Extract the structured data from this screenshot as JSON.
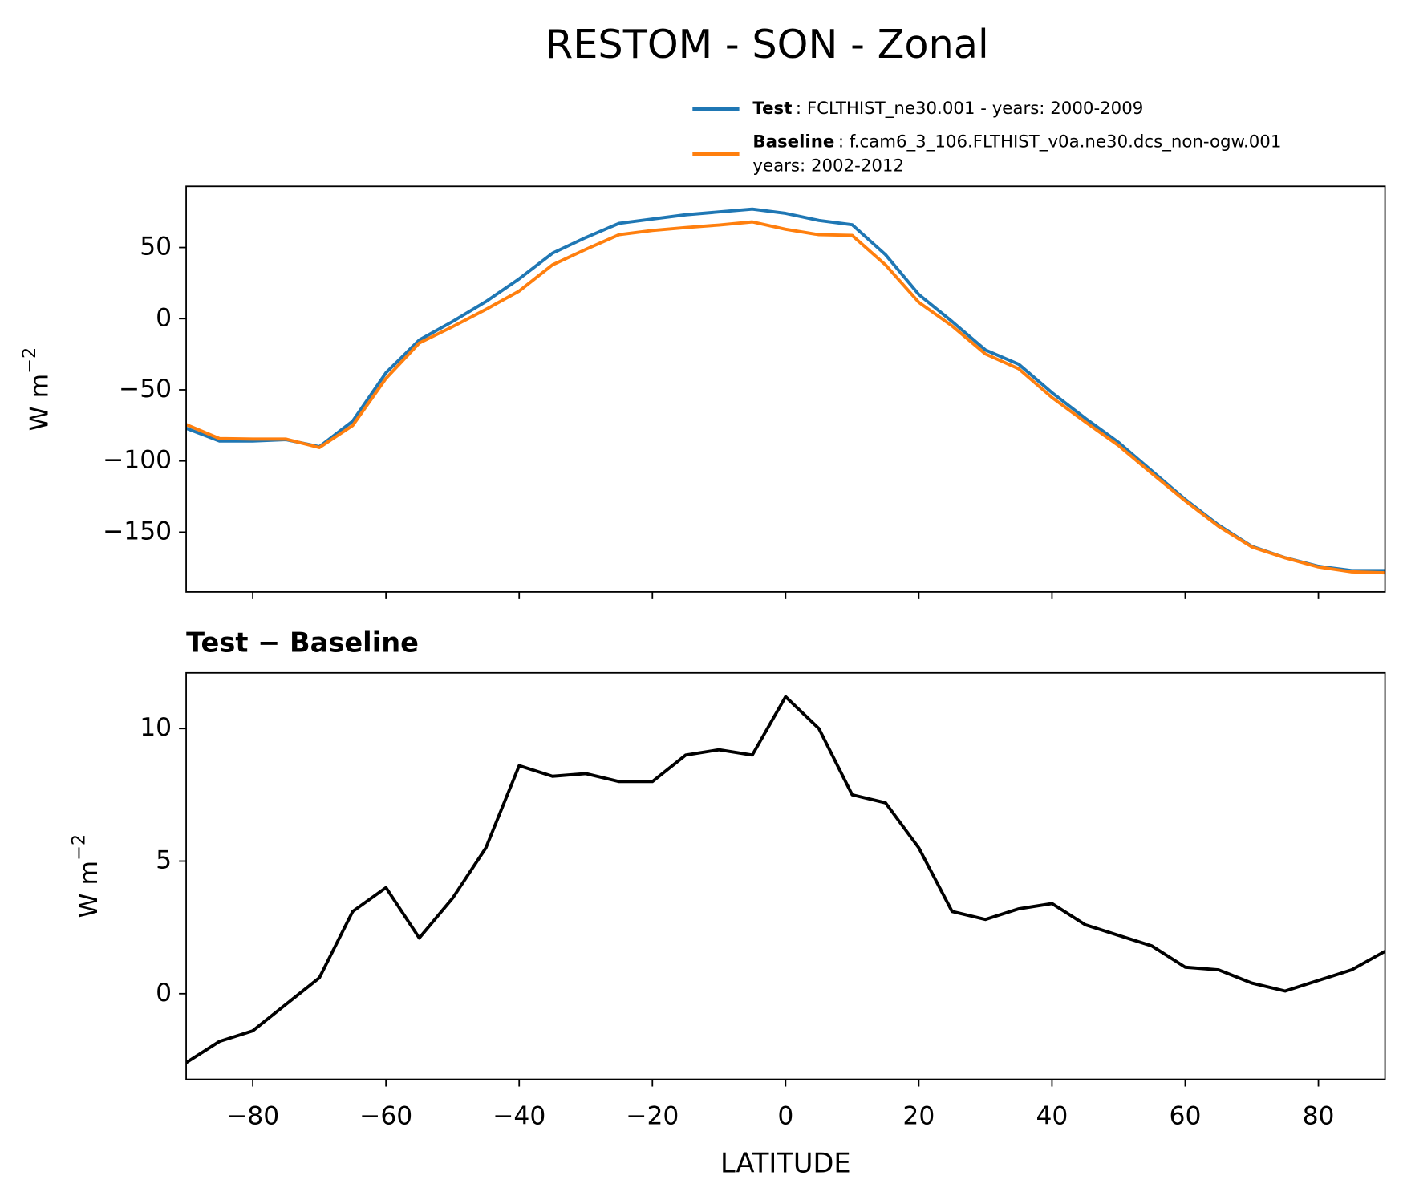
{
  "title": "RESTOM - SON - Zonal",
  "chart_data": [
    {
      "type": "line",
      "ylabel": "W m",
      "ylabel_sup": "−2",
      "x": [
        -90,
        -85,
        -80,
        -75,
        -70,
        -65,
        -60,
        -55,
        -50,
        -45,
        -40,
        -35,
        -30,
        -25,
        -20,
        -15,
        -10,
        -5,
        0,
        5,
        10,
        15,
        20,
        25,
        30,
        35,
        40,
        45,
        50,
        55,
        60,
        65,
        70,
        75,
        80,
        85,
        90
      ],
      "series": [
        {
          "name": "Test",
          "description": ": FCLTHIST_ne30.001 - years: 2000-2009",
          "color": "#1f77b4",
          "values": [
            -77,
            -86,
            -86,
            -85,
            -90,
            -72,
            -38,
            -15,
            -2,
            12,
            28,
            46,
            57,
            67,
            70,
            73,
            75,
            77,
            74,
            69,
            66,
            45,
            17,
            -2,
            -22,
            -32,
            -52,
            -70,
            -87,
            -107,
            -127,
            -145,
            -160,
            -168,
            -174,
            -177,
            -177
          ]
        },
        {
          "name": "Baseline",
          "description": ": f.cam6_3_106.FLTHIST_v0a.ne30.dcs_non-ogw.001",
          "description2": "years: 2002-2012",
          "color": "#ff7f0e",
          "values": [
            -74.4,
            -84.2,
            -84.6,
            -84.6,
            -90.6,
            -75.1,
            -42,
            -17.1,
            -5.6,
            6.5,
            19.4,
            37.8,
            48.7,
            59,
            62,
            64,
            65.8,
            68,
            62.8,
            59,
            58.5,
            37.8,
            11.5,
            -5.1,
            -24.8,
            -35.2,
            -55.4,
            -72.6,
            -89.2,
            -108.8,
            -128,
            -145.9,
            -160.4,
            -168.1,
            -174.5,
            -177.9,
            -178.6
          ]
        }
      ],
      "xlim": [
        -90,
        90
      ],
      "xticks": [
        -80,
        -60,
        -40,
        -20,
        0,
        20,
        40,
        60,
        80
      ],
      "ylim": [
        -192,
        93
      ],
      "yticks": [
        {
          "value": -150,
          "label": "−150"
        },
        {
          "value": -100,
          "label": "−100"
        },
        {
          "value": -50,
          "label": "−50"
        },
        0,
        50
      ]
    },
    {
      "type": "line",
      "subtitle": "Test − Baseline",
      "ylabel": "W m",
      "ylabel_sup": "−2",
      "xlabel": "LATITUDE",
      "x": [
        -90,
        -85,
        -80,
        -75,
        -70,
        -65,
        -60,
        -55,
        -50,
        -45,
        -40,
        -35,
        -30,
        -25,
        -20,
        -15,
        -10,
        -5,
        0,
        5,
        10,
        15,
        20,
        25,
        30,
        35,
        40,
        45,
        50,
        55,
        60,
        65,
        70,
        75,
        80,
        85,
        90
      ],
      "series": [
        {
          "color": "#000000",
          "values": [
            -2.6,
            -1.8,
            -1.4,
            -0.4,
            0.6,
            3.1,
            4.0,
            2.1,
            3.6,
            5.5,
            8.6,
            8.2,
            8.3,
            8.0,
            8.0,
            9.0,
            9.2,
            9.0,
            11.2,
            10.0,
            7.5,
            7.2,
            5.5,
            3.1,
            2.8,
            3.2,
            3.4,
            2.6,
            2.2,
            1.8,
            1.0,
            0.9,
            0.4,
            0.1,
            0.5,
            0.9,
            1.6
          ]
        }
      ],
      "xlim": [
        -90,
        90
      ],
      "xticks": [
        {
          "value": -80,
          "label": "−80"
        },
        {
          "value": -60,
          "label": "−60"
        },
        {
          "value": -40,
          "label": "−40"
        },
        {
          "value": -20,
          "label": "−20"
        },
        0,
        20,
        40,
        60,
        80
      ],
      "ylim": [
        -3.23,
        12.1
      ],
      "yticks": [
        0,
        5,
        10
      ]
    }
  ]
}
